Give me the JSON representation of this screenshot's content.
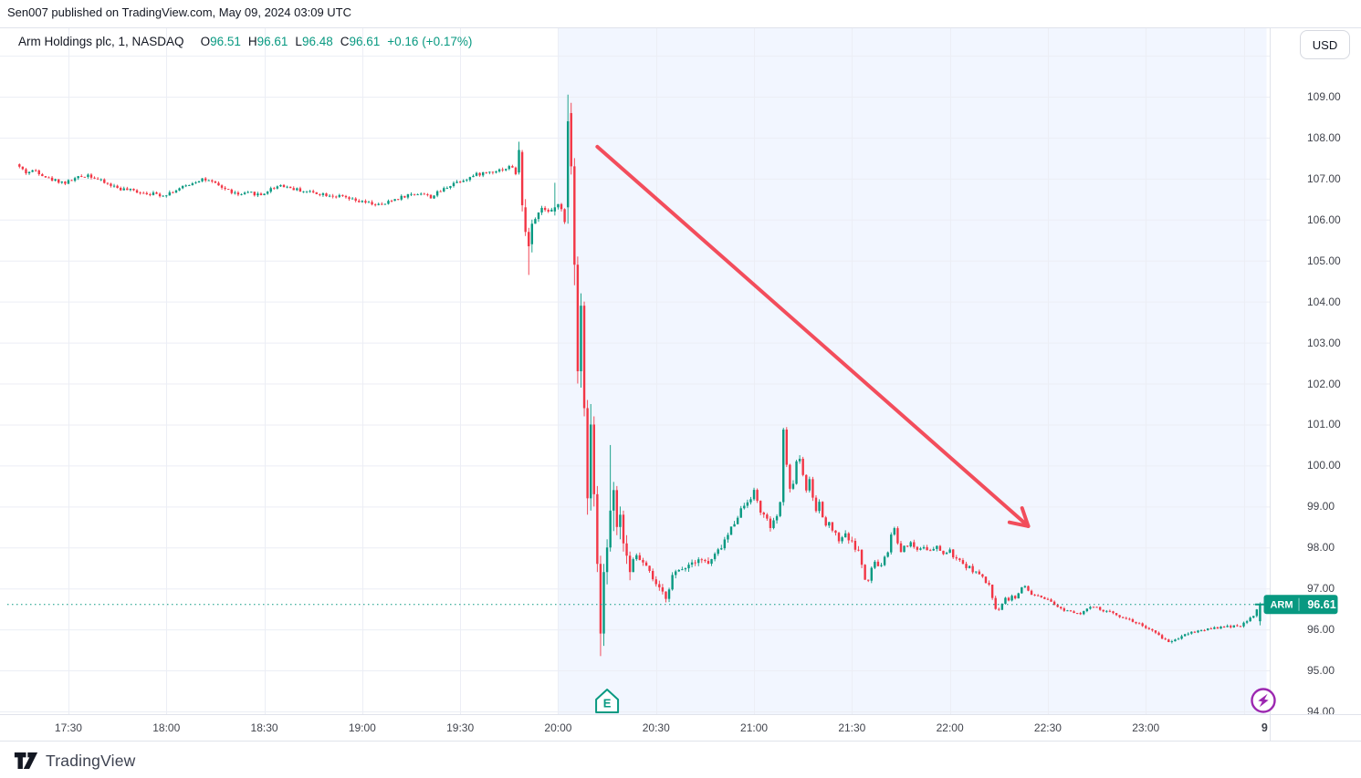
{
  "attribution": "Sen007 published on TradingView.com, May 09, 2024 03:09 UTC",
  "legend": {
    "symbol_info": "Arm Holdings plc, 1, NASDAQ",
    "o_label": "O",
    "o_value": "96.51",
    "h_label": "H",
    "h_value": "96.61",
    "l_label": "L",
    "l_value": "96.48",
    "c_label": "C",
    "c_value": "96.61",
    "change": "+0.16 (+0.17%)"
  },
  "currency_button": "USD",
  "footer": {
    "logo_text": "TradingView"
  },
  "colors": {
    "up": "#089981",
    "down": "#f23645",
    "arrow": "#f23645",
    "purple": "#9c27b0",
    "grid": "#eceef5",
    "border": "#e0e3eb",
    "session_fill": "rgba(41,98,255,0.06)",
    "badge": "#089981"
  },
  "price_axis": {
    "labels": [
      "109.00",
      "108.00",
      "107.00",
      "106.00",
      "105.00",
      "104.00",
      "103.00",
      "102.00",
      "101.00",
      "100.00",
      "99.00",
      "98.00",
      "97.00",
      "96.00",
      "95.00",
      "94.00"
    ],
    "values": [
      109,
      108,
      107,
      106,
      105,
      104,
      103,
      102,
      101,
      100,
      99,
      98,
      97,
      96,
      95,
      94
    ]
  },
  "time_axis": {
    "labels": [
      {
        "text": "17:30",
        "t": 15
      },
      {
        "text": "18:00",
        "t": 45
      },
      {
        "text": "18:30",
        "t": 75
      },
      {
        "text": "19:00",
        "t": 105
      },
      {
        "text": "19:30",
        "t": 135
      },
      {
        "text": "20:00",
        "t": 165
      },
      {
        "text": "20:30",
        "t": 195
      },
      {
        "text": "21:00",
        "t": 225
      },
      {
        "text": "21:30",
        "t": 255
      },
      {
        "text": "22:00",
        "t": 285
      },
      {
        "text": "22:30",
        "t": 315
      },
      {
        "text": "23:00",
        "t": 345
      },
      {
        "text": "9",
        "t": 381.4,
        "emphasis": true
      }
    ],
    "grid_t": [
      15,
      45,
      75,
      105,
      135,
      165,
      195,
      225,
      255,
      285,
      315,
      345,
      375
    ]
  },
  "price_line": {
    "symbol": "ARM",
    "price": "96.61",
    "value": 96.61
  },
  "session_highlight": {
    "t_start": 165,
    "t_end": 382
  },
  "annotations": {
    "arrow": {
      "t1": 177,
      "p1": 107.78,
      "t2": 309,
      "p2": 98.52
    },
    "earnings_marker": {
      "t": 180,
      "label": "E"
    },
    "bolt_marker": {
      "t": 381
    }
  },
  "chart_data": {
    "type": "candlestick",
    "title": "Arm Holdings plc, 1, NASDAQ",
    "symbol": "ARM",
    "exchange": "NASDAQ",
    "interval_minutes": 1,
    "last_bar": {
      "open": 96.51,
      "high": 96.61,
      "low": 96.48,
      "close": 96.61,
      "change": "+0.16 (+0.17%)"
    },
    "session_high": 109.05,
    "session_low": 95.35,
    "time_start": "17:15",
    "time_end": "23:36",
    "ylim": [
      94,
      109.6
    ],
    "legend_position": "top-left",
    "grid": true,
    "anchors": [
      [
        0,
        107.35
      ],
      [
        3,
        107.15
      ],
      [
        6,
        107.2
      ],
      [
        10,
        107.0
      ],
      [
        15,
        106.9
      ],
      [
        18,
        107.0
      ],
      [
        22,
        107.1
      ],
      [
        27,
        106.9
      ],
      [
        32,
        106.75
      ],
      [
        36,
        106.7
      ],
      [
        40,
        106.65
      ],
      [
        45,
        106.6
      ],
      [
        50,
        106.75
      ],
      [
        54,
        106.9
      ],
      [
        57,
        107.0
      ],
      [
        60,
        106.9
      ],
      [
        64,
        106.75
      ],
      [
        68,
        106.6
      ],
      [
        72,
        106.65
      ],
      [
        75,
        106.6
      ],
      [
        78,
        106.75
      ],
      [
        81,
        106.85
      ],
      [
        85,
        106.75
      ],
      [
        88,
        106.7
      ],
      [
        92,
        106.65
      ],
      [
        96,
        106.6
      ],
      [
        100,
        106.55
      ],
      [
        104,
        106.45
      ],
      [
        108,
        106.4
      ],
      [
        112,
        106.35
      ],
      [
        116,
        106.5
      ],
      [
        120,
        106.6
      ],
      [
        124,
        106.65
      ],
      [
        127,
        106.55
      ],
      [
        130,
        106.7
      ],
      [
        134,
        106.9
      ],
      [
        138,
        107.0
      ],
      [
        141,
        107.1
      ],
      [
        144,
        107.15
      ],
      [
        147,
        107.2
      ],
      [
        150,
        107.25
      ],
      [
        152,
        107.3
      ],
      [
        158,
        105.9
      ],
      [
        159,
        106.05
      ],
      [
        160,
        106.15
      ],
      [
        161,
        106.25
      ],
      [
        162,
        106.3
      ],
      [
        163,
        106.2
      ],
      [
        165,
        106.3
      ],
      [
        166,
        106.35
      ],
      [
        167,
        106.3
      ],
      [
        188,
        97.5
      ],
      [
        190,
        97.8
      ],
      [
        193,
        97.5
      ],
      [
        197,
        96.95
      ],
      [
        199,
        96.8
      ],
      [
        201,
        97.3
      ],
      [
        205,
        97.55
      ],
      [
        209,
        97.75
      ],
      [
        212,
        97.6
      ],
      [
        215,
        97.9
      ],
      [
        218,
        98.3
      ],
      [
        221,
        98.8
      ],
      [
        224,
        99.15
      ],
      [
        226,
        99.35
      ],
      [
        228,
        98.9
      ],
      [
        231,
        98.5
      ],
      [
        233,
        98.7
      ],
      [
        234,
        99.15
      ],
      [
        235,
        100.8
      ],
      [
        236,
        100.1
      ],
      [
        237,
        99.35
      ],
      [
        238,
        99.6
      ],
      [
        239,
        100.1
      ],
      [
        240,
        100.2
      ],
      [
        241,
        99.8
      ],
      [
        242,
        99.4
      ],
      [
        243,
        99.6
      ],
      [
        244,
        99.15
      ],
      [
        245,
        98.9
      ],
      [
        246,
        99.1
      ],
      [
        247,
        98.75
      ],
      [
        248,
        98.5
      ],
      [
        249,
        98.7
      ],
      [
        250,
        98.45
      ],
      [
        252,
        98.2
      ],
      [
        254,
        98.35
      ],
      [
        256,
        98.1
      ],
      [
        258,
        97.9
      ],
      [
        259,
        97.6
      ],
      [
        260,
        97.2
      ],
      [
        261,
        97.15
      ],
      [
        262,
        97.5
      ],
      [
        263,
        97.65
      ],
      [
        264,
        97.5
      ],
      [
        265,
        97.6
      ],
      [
        266,
        97.75
      ],
      [
        267,
        97.9
      ],
      [
        268,
        98.3
      ],
      [
        269,
        98.5
      ],
      [
        270,
        98.1
      ],
      [
        271,
        97.9
      ],
      [
        272,
        98.05
      ],
      [
        274,
        98.1
      ],
      [
        276,
        97.95
      ],
      [
        278,
        98.05
      ],
      [
        280,
        97.9
      ],
      [
        282,
        98.0
      ],
      [
        284,
        97.85
      ],
      [
        286,
        97.9
      ],
      [
        288,
        97.7
      ],
      [
        290,
        97.6
      ],
      [
        292,
        97.5
      ],
      [
        294,
        97.4
      ],
      [
        296,
        97.25
      ],
      [
        298,
        97.05
      ],
      [
        300,
        96.55
      ],
      [
        301,
        96.45
      ],
      [
        302,
        96.65
      ],
      [
        303,
        96.8
      ],
      [
        304,
        96.7
      ],
      [
        305,
        96.85
      ],
      [
        306,
        96.75
      ],
      [
        307,
        96.9
      ],
      [
        308,
        97.0
      ],
      [
        309,
        97.05
      ],
      [
        310,
        96.95
      ],
      [
        311,
        96.85
      ],
      [
        313,
        96.8
      ],
      [
        316,
        96.7
      ],
      [
        318,
        96.6
      ],
      [
        320,
        96.5
      ],
      [
        323,
        96.45
      ],
      [
        326,
        96.4
      ],
      [
        328,
        96.5
      ],
      [
        330,
        96.55
      ],
      [
        333,
        96.45
      ],
      [
        336,
        96.4
      ],
      [
        339,
        96.3
      ],
      [
        342,
        96.2
      ],
      [
        345,
        96.1
      ],
      [
        348,
        95.95
      ],
      [
        351,
        95.8
      ],
      [
        353,
        95.7
      ],
      [
        355,
        95.75
      ],
      [
        358,
        95.9
      ],
      [
        361,
        95.95
      ],
      [
        364,
        96.0
      ],
      [
        367,
        96.05
      ],
      [
        370,
        96.05
      ],
      [
        373,
        96.1
      ],
      [
        375,
        96.1
      ],
      [
        377,
        96.2
      ],
      [
        379,
        96.35
      ],
      [
        381,
        96.61
      ]
    ],
    "overrides": {
      "153": [
        107.15,
        107.9,
        107.1,
        107.7
      ],
      "154": [
        107.65,
        107.7,
        106.2,
        106.35
      ],
      "155": [
        106.3,
        106.5,
        105.6,
        105.7
      ],
      "156": [
        105.7,
        105.8,
        104.65,
        105.35
      ],
      "157": [
        105.4,
        106.0,
        105.2,
        105.9
      ],
      "164": [
        106.2,
        106.9,
        106.1,
        106.3
      ],
      "168": [
        106.3,
        109.05,
        105.9,
        108.4
      ],
      "169": [
        108.6,
        108.85,
        107.1,
        107.3
      ],
      "170": [
        107.3,
        107.5,
        104.4,
        104.9
      ],
      "171": [
        104.9,
        105.1,
        102.0,
        102.3
      ],
      "172": [
        102.3,
        104.2,
        101.9,
        103.9
      ],
      "173": [
        103.9,
        104.0,
        101.2,
        101.4
      ],
      "174": [
        101.4,
        101.6,
        98.8,
        99.2
      ],
      "175": [
        99.2,
        101.5,
        98.9,
        101.0
      ],
      "176": [
        101.0,
        101.2,
        99.0,
        99.3
      ],
      "177": [
        99.3,
        99.5,
        97.4,
        97.6
      ],
      "178": [
        97.6,
        97.8,
        95.35,
        95.9
      ],
      "179": [
        95.9,
        97.6,
        95.6,
        97.4
      ],
      "180": [
        97.4,
        98.2,
        97.1,
        98.0
      ],
      "181": [
        98.0,
        100.5,
        97.9,
        98.9
      ],
      "182": [
        98.9,
        99.6,
        98.4,
        99.4
      ],
      "183": [
        99.4,
        99.5,
        98.3,
        98.5
      ],
      "184": [
        98.5,
        99.0,
        98.2,
        98.8
      ],
      "185": [
        98.8,
        98.9,
        97.9,
        98.1
      ],
      "186": [
        98.1,
        98.3,
        97.6,
        97.8
      ],
      "187": [
        97.8,
        97.9,
        97.2,
        97.4
      ],
      "380": [
        96.2,
        96.66,
        96.1,
        96.61
      ]
    }
  }
}
